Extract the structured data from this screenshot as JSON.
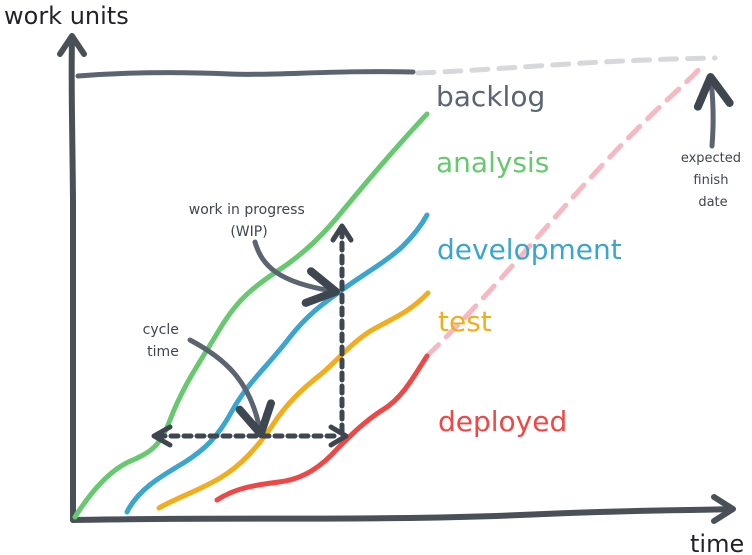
{
  "axes": {
    "y_label": "work units",
    "x_label": "time"
  },
  "stages": {
    "backlog": {
      "label": "backlog",
      "color": "#5b6470"
    },
    "analysis": {
      "label": "analysis",
      "color": "#67c96f"
    },
    "development": {
      "label": "development",
      "color": "#3aa6cf"
    },
    "test": {
      "label": "test",
      "color": "#f3ad1b"
    },
    "deployed": {
      "label": "deployed",
      "color": "#f04646"
    }
  },
  "annotations": {
    "wip": [
      "work in progress",
      "(WIP)"
    ],
    "cycle_time": [
      "cycle",
      "time"
    ],
    "expected_finish": [
      "expected",
      "finish",
      "date"
    ]
  },
  "colors": {
    "axis": "#4a5058",
    "annotation": "#3e4650",
    "projection_backlog": "#d6d8dc",
    "projection_deployed": "#f7b8c2"
  }
}
